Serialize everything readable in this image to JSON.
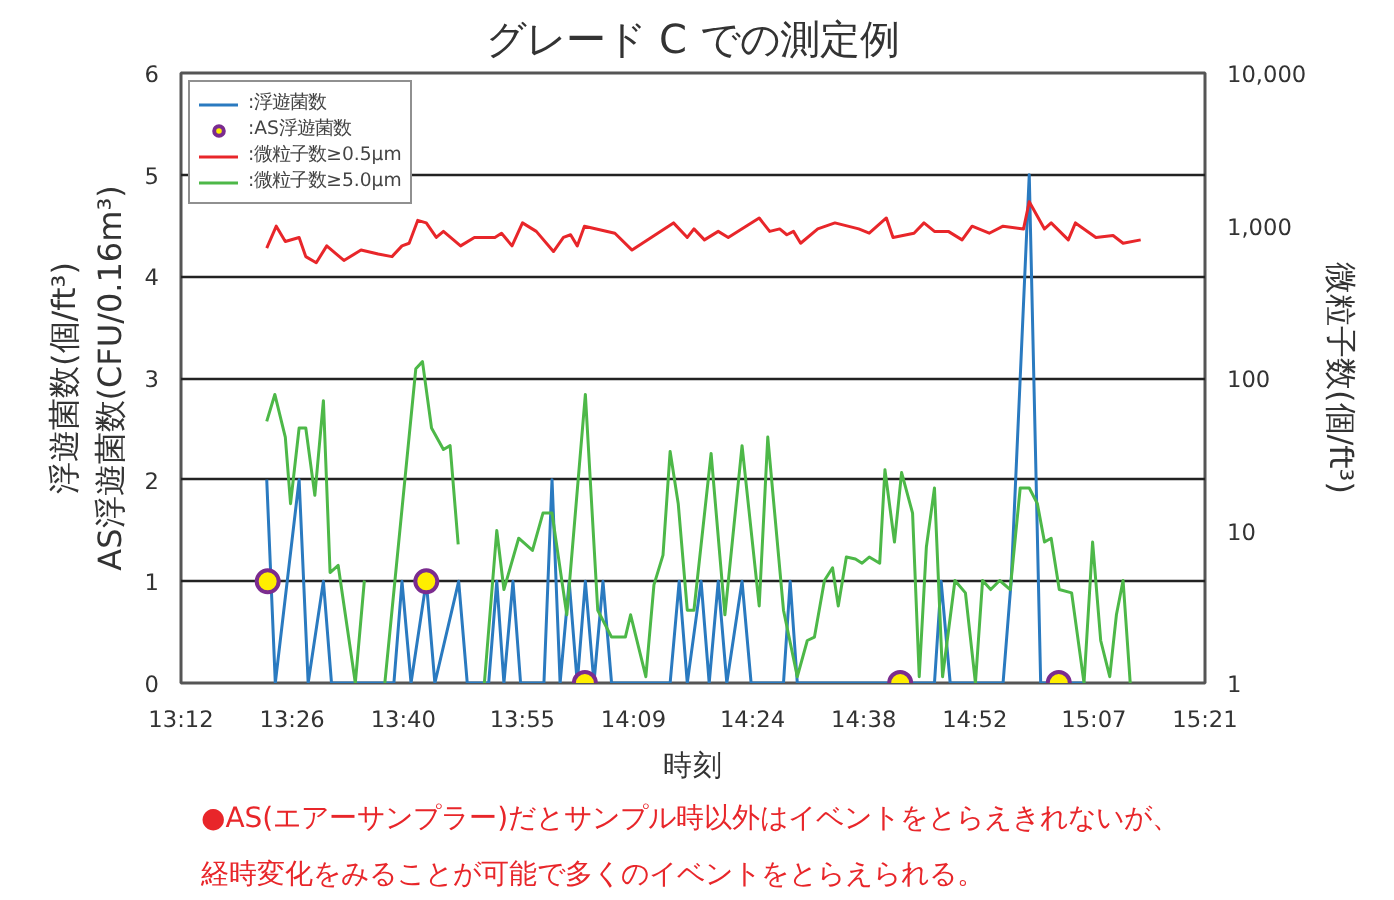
{
  "chart_data": {
    "type": "line",
    "title": "グレード C での測定例",
    "xlabel": "時刻",
    "ylabel": "浮遊菌数(個/ft³)\nAS浮遊菌数(CFU/0.16m³)",
    "y2label": "微粒子数(個/ft³)",
    "annotations": [
      "●AS(エアーサンプラー)だとサンプル時以外はイベントをとらえきれないが、",
      "経時変化をみることが可能で多くのイベントをとらえられる。"
    ],
    "xlim": [
      13.2,
      15.35
    ],
    "xticks": [
      {
        "value": 13.2,
        "label": "13:12"
      },
      {
        "value": 13.4333,
        "label": "13:26"
      },
      {
        "value": 13.6667,
        "label": "13:40"
      },
      {
        "value": 13.9167,
        "label": "13:55"
      },
      {
        "value": 14.15,
        "label": "14:09"
      },
      {
        "value": 14.4,
        "label": "14:24"
      },
      {
        "value": 14.6333,
        "label": "14:38"
      },
      {
        "value": 14.8667,
        "label": "14:52"
      },
      {
        "value": 15.1167,
        "label": "15:07"
      },
      {
        "value": 15.35,
        "label": "15:21"
      }
    ],
    "ylim": [
      0,
      6
    ],
    "yticks": [
      0,
      1,
      2,
      3,
      4,
      5,
      6
    ],
    "y2lim": [
      1,
      10000
    ],
    "y2ticks": [
      1,
      10,
      100,
      {
        "value": 1000,
        "label": "1,000"
      },
      {
        "value": 10000,
        "label": "10,000"
      }
    ],
    "log": "y2",
    "grid": "y",
    "legend": "top left",
    "series": [
      {
        "name": ":浮遊菌数",
        "color": "#2a7ac0",
        "x": [
          13.38,
          13.398,
          13.448,
          13.467,
          13.499,
          13.516,
          13.647,
          13.664,
          13.683,
          13.715,
          13.733,
          13.783,
          13.801,
          13.846,
          13.863,
          13.878,
          13.897,
          13.913,
          13.962,
          13.979,
          13.996,
          14.015,
          14.032,
          14.049,
          14.067,
          14.086,
          14.104,
          14.227,
          14.246,
          14.263,
          14.292,
          14.309,
          14.328,
          14.346,
          14.378,
          14.397,
          14.465,
          14.479,
          14.494,
          14.782,
          14.796,
          14.815,
          14.926,
          14.943,
          14.981,
          15.005,
          15.099
        ],
        "values": [
          2,
          0,
          2,
          0,
          1,
          0,
          0,
          1,
          0,
          1,
          0,
          1,
          0,
          0,
          1,
          0,
          1,
          0,
          0,
          2,
          0,
          1,
          0,
          1,
          0,
          1,
          0,
          0,
          1,
          0,
          1,
          0,
          1,
          0,
          1,
          0,
          0,
          1,
          0,
          0,
          1,
          0,
          0,
          1,
          5,
          0,
          0
        ]
      },
      {
        "name": ":AS浮遊菌数",
        "type": "scatter",
        "marker": "circle",
        "color": "#ffee00",
        "x": [
          13.382,
          13.715,
          14.048,
          14.71,
          15.043
        ],
        "values": [
          1,
          1,
          0,
          0,
          0
        ]
      },
      {
        "name": ":微粒子数≥0.5μm",
        "axis": "y2",
        "color": "#e8262a",
        "x": [
          13.38,
          13.4,
          13.419,
          13.448,
          13.462,
          13.484,
          13.506,
          13.542,
          13.578,
          13.614,
          13.643,
          13.664,
          13.679,
          13.697,
          13.715,
          13.736,
          13.751,
          13.787,
          13.816,
          13.859,
          13.873,
          13.895,
          13.917,
          13.946,
          13.982,
          14.003,
          14.018,
          14.032,
          14.047,
          14.111,
          14.147,
          14.234,
          14.263,
          14.277,
          14.299,
          14.328,
          14.349,
          14.414,
          14.436,
          14.457,
          14.472,
          14.486,
          14.501,
          14.537,
          14.573,
          14.623,
          14.645,
          14.681,
          14.695,
          14.739,
          14.76,
          14.782,
          14.811,
          14.84,
          14.861,
          14.897,
          14.926,
          14.969,
          14.981,
          15.013,
          15.027,
          15.063,
          15.078,
          15.121,
          15.157,
          15.178,
          15.215
        ],
        "values": [
          710,
          990,
          785,
          835,
          625,
          570,
          735,
          590,
          690,
          650,
          625,
          735,
          765,
          1080,
          1040,
          835,
          915,
          735,
          835,
          835,
          890,
          735,
          1040,
          915,
          675,
          835,
          870,
          735,
          990,
          890,
          690,
          1040,
          835,
          950,
          805,
          915,
          835,
          1120,
          915,
          950,
          870,
          915,
          765,
          950,
          1040,
          950,
          890,
          1120,
          835,
          890,
          1040,
          915,
          915,
          805,
          990,
          890,
          990,
          950,
          1430,
          950,
          1040,
          805,
          1040,
          835,
          860,
          765,
          805
        ]
      },
      {
        "name": ":微粒子数≥5.0μm",
        "axis": "y2",
        "color": "#4db848",
        "x": [
          13.38,
          13.397,
          13.419,
          13.43,
          13.448,
          13.462,
          13.481,
          13.499,
          13.513,
          13.53,
          13.566,
          13.585,
          13.6,
          13.628,
          13.693,
          13.707,
          13.726,
          13.751,
          13.765,
          13.782,
          13.81,
          13.837,
          13.863,
          13.878,
          13.909,
          13.938,
          13.96,
          13.979,
          14.01,
          14.049,
          14.075,
          14.104,
          14.133,
          14.144,
          14.176,
          14.193,
          14.212,
          14.227,
          14.244,
          14.263,
          14.277,
          14.313,
          14.342,
          14.378,
          14.414,
          14.432,
          14.465,
          14.494,
          14.515,
          14.53,
          14.551,
          14.568,
          14.58,
          14.597,
          14.616,
          14.63,
          14.645,
          14.667,
          14.678,
          14.698,
          14.713,
          14.736,
          14.75,
          14.765,
          14.782,
          14.799,
          14.825,
          14.847,
          14.868,
          14.883,
          14.9,
          14.919,
          14.941,
          14.962,
          14.981,
          14.998,
          15.013,
          15.027,
          15.044,
          15.07,
          15.096,
          15.114,
          15.131,
          15.15,
          15.164,
          15.178,
          15.193
        ],
        "values": [
          52,
          78,
          41,
          15,
          47,
          47,
          17,
          71,
          5.3,
          5.9,
          1.0,
          4.7,
          null,
          1.0,
          115,
          128,
          47,
          34,
          36,
          8.1,
          null,
          1.0,
          10,
          4.1,
          8.9,
          7.4,
          13,
          13,
          2.8,
          78,
          3.0,
          2.0,
          2.0,
          2.8,
          1.1,
          4.4,
          6.9,
          33,
          15,
          3.0,
          3.0,
          32,
          2.8,
          36,
          3.2,
          41,
          3.0,
          1.1,
          1.9,
          2.0,
          4.7,
          5.7,
          3.2,
          6.7,
          6.5,
          6.1,
          6.7,
          6.1,
          25,
          8.4,
          24,
          13,
          1.1,
          7.8,
          19,
          1.1,
          4.7,
          3.9,
          1.0,
          4.7,
          4.1,
          4.7,
          4.1,
          19,
          19,
          15,
          8.4,
          8.9,
          4.1,
          3.9,
          1.0,
          8.4,
          1.9,
          1.1,
          2.8,
          4.7,
          1.0
        ]
      }
    ]
  }
}
